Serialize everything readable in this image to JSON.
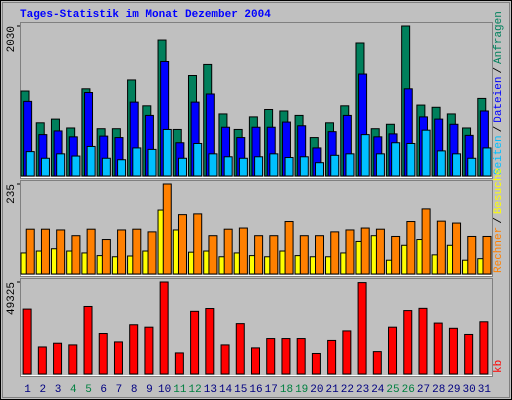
{
  "title": "Tages-Statistik im Monat Dezember 2004",
  "title_color": "#0000ff",
  "categories": [
    "1",
    "2",
    "3",
    "4",
    "5",
    "6",
    "7",
    "8",
    "9",
    "10",
    "11",
    "12",
    "13",
    "14",
    "15",
    "16",
    "17",
    "18",
    "19",
    "20",
    "21",
    "22",
    "23",
    "24",
    "25",
    "26",
    "27",
    "28",
    "29",
    "30",
    "31"
  ],
  "category_color": "#000080",
  "weekend_categories": [
    "4",
    "5",
    "11",
    "12",
    "18",
    "19",
    "25",
    "26"
  ],
  "weekend_color": "#008040",
  "legend_separator": "/",
  "chart_data": [
    {
      "type": "bar",
      "ylim": [
        0,
        2030
      ],
      "yticks": [
        2030
      ],
      "series": [
        {
          "name": "Anfragen",
          "color": "#00805c",
          "values": [
            1150,
            720,
            770,
            650,
            1180,
            640,
            640,
            1300,
            950,
            1840,
            630,
            1360,
            1510,
            840,
            630,
            800,
            900,
            880,
            820,
            520,
            720,
            950,
            1800,
            640,
            700,
            2030,
            960,
            930,
            840,
            650,
            1050
          ]
        },
        {
          "name": "Dateien",
          "color": "#0000ff",
          "values": [
            1010,
            560,
            610,
            530,
            1130,
            540,
            520,
            1000,
            820,
            1550,
            450,
            1000,
            1110,
            660,
            520,
            660,
            660,
            730,
            680,
            380,
            600,
            820,
            1380,
            530,
            570,
            1180,
            800,
            770,
            700,
            550,
            880
          ]
        },
        {
          "name": "Seiten",
          "color": "#00c0ff",
          "values": [
            330,
            240,
            300,
            270,
            400,
            240,
            220,
            380,
            360,
            630,
            240,
            440,
            300,
            260,
            240,
            260,
            300,
            250,
            260,
            180,
            280,
            300,
            560,
            300,
            450,
            440,
            620,
            340,
            300,
            240,
            380
          ]
        }
      ]
    },
    {
      "type": "bar",
      "ylim": [
        0,
        235
      ],
      "yticks": [
        235
      ],
      "series": [
        {
          "name": "Besuche",
          "color": "#ffff00",
          "values": [
            55,
            60,
            66,
            60,
            55,
            48,
            45,
            47,
            60,
            167,
            115,
            57,
            60,
            45,
            55,
            48,
            45,
            60,
            48,
            45,
            45,
            55,
            85,
            100,
            36,
            75,
            90,
            50,
            75,
            36,
            40
          ]
        },
        {
          "name": "Rechner",
          "color": "#ff8000",
          "values": [
            117,
            117,
            115,
            100,
            117,
            90,
            115,
            117,
            110,
            235,
            155,
            157,
            100,
            117,
            120,
            100,
            100,
            137,
            100,
            100,
            110,
            115,
            120,
            117,
            98,
            137,
            170,
            138,
            133,
            98,
            98
          ]
        }
      ]
    },
    {
      "type": "bar",
      "ylim": [
        0,
        49325
      ],
      "yticks": [
        49325
      ],
      "series": [
        {
          "name": "kb",
          "color": "#ff0000",
          "values": [
            34800,
            14500,
            16500,
            15600,
            36200,
            21700,
            17200,
            26400,
            25100,
            49325,
            11300,
            33600,
            35100,
            15600,
            27000,
            14000,
            19000,
            19000,
            19000,
            11000,
            18000,
            23100,
            49000,
            12000,
            25100,
            34000,
            35200,
            27300,
            24500,
            21200,
            28000
          ]
        }
      ]
    }
  ]
}
